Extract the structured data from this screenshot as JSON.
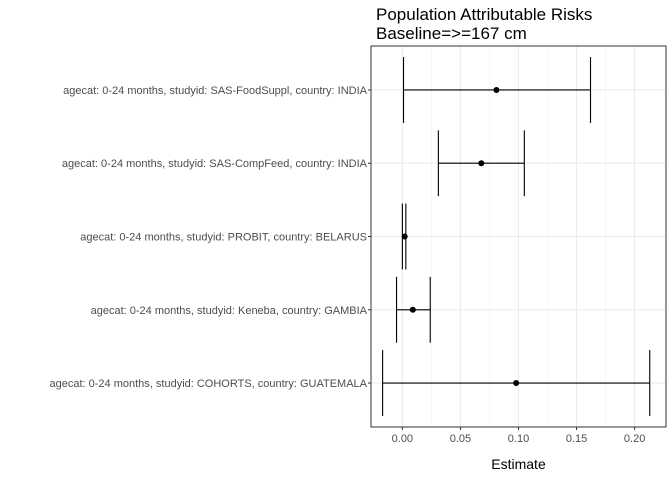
{
  "chart_data": {
    "type": "scatter",
    "title": "Population Attributable Risks",
    "subtitle": "Baseline=>=167 cm",
    "xlabel": "Estimate",
    "ylabel": "",
    "xlim": [
      -0.027,
      0.227
    ],
    "xticks": [
      0.0,
      0.05,
      0.1,
      0.15,
      0.2
    ],
    "xtick_labels": [
      "0.00",
      "0.05",
      "0.10",
      "0.15",
      "0.20"
    ],
    "grid": true,
    "categories": [
      "agecat: 0-24 months, studyid: SAS-FoodSuppl, country: INDIA",
      "agecat: 0-24 months, studyid: SAS-CompFeed, country: INDIA",
      "agecat: 0-24 months, studyid: PROBIT, country: BELARUS",
      "agecat: 0-24 months, studyid: Keneba, country: GAMBIA",
      "agecat: 0-24 months, studyid: COHORTS, country: GUATEMALA"
    ],
    "estimates": [
      0.081,
      0.068,
      0.002,
      0.009,
      0.098
    ],
    "ci_lower": [
      0.001,
      0.031,
      0.0,
      -0.005,
      -0.017
    ],
    "ci_upper": [
      0.162,
      0.105,
      0.003,
      0.024,
      0.213
    ]
  }
}
